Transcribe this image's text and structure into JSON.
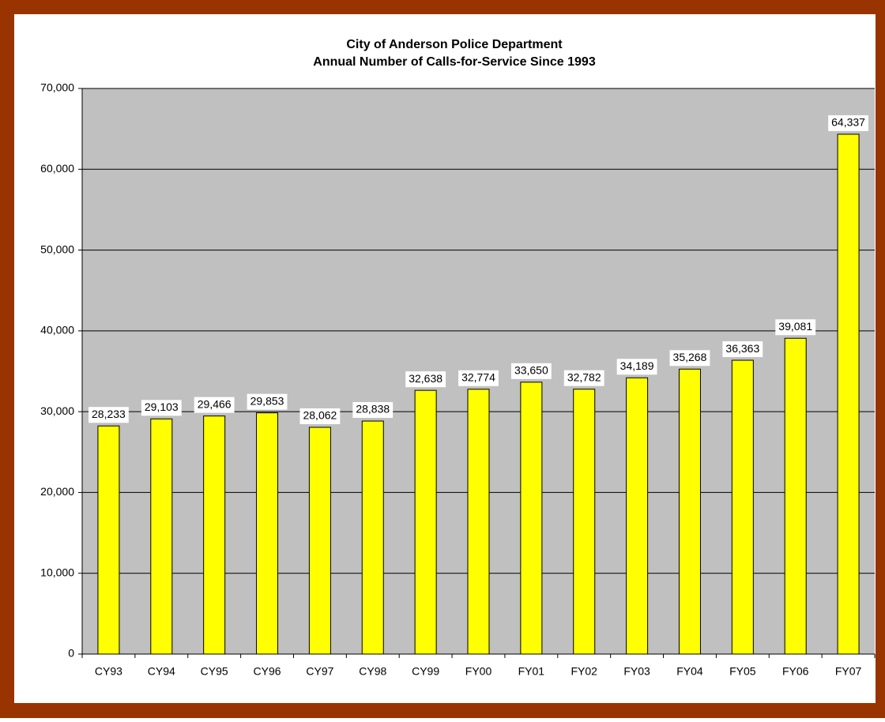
{
  "chart_data": {
    "type": "bar",
    "title": "City of Anderson Police Department",
    "subtitle": "Annual Number of Calls-for-Service Since 1993",
    "categories": [
      "CY93",
      "CY94",
      "CY95",
      "CY96",
      "CY97",
      "CY98",
      "CY99",
      "FY00",
      "FY01",
      "FY02",
      "FY03",
      "FY04",
      "FY05",
      "FY06",
      "FY07"
    ],
    "values": [
      28233,
      29103,
      29466,
      29853,
      28062,
      28838,
      32638,
      32774,
      33650,
      32782,
      34189,
      35268,
      36363,
      39081,
      64337
    ],
    "value_labels": [
      "28,233",
      "29,103",
      "29,466",
      "29,853",
      "28,062",
      "28,838",
      "32,638",
      "32,774",
      "33,650",
      "32,782",
      "34,189",
      "35,268",
      "36,363",
      "39,081",
      "64,337"
    ],
    "color": "#ffff00",
    "ylim": [
      0,
      70000
    ],
    "yticks": [
      0,
      {
        "value": 10000,
        "label": "10,000"
      },
      {
        "value": 20000,
        "label": "20,000"
      },
      {
        "value": 30000,
        "label": "30,000"
      },
      {
        "value": 40000,
        "label": "40,000"
      },
      {
        "value": 50000,
        "label": "50,000"
      },
      {
        "value": 60000,
        "label": "60,000"
      },
      {
        "value": 70000,
        "label": "70,000"
      }
    ],
    "grid": true
  }
}
